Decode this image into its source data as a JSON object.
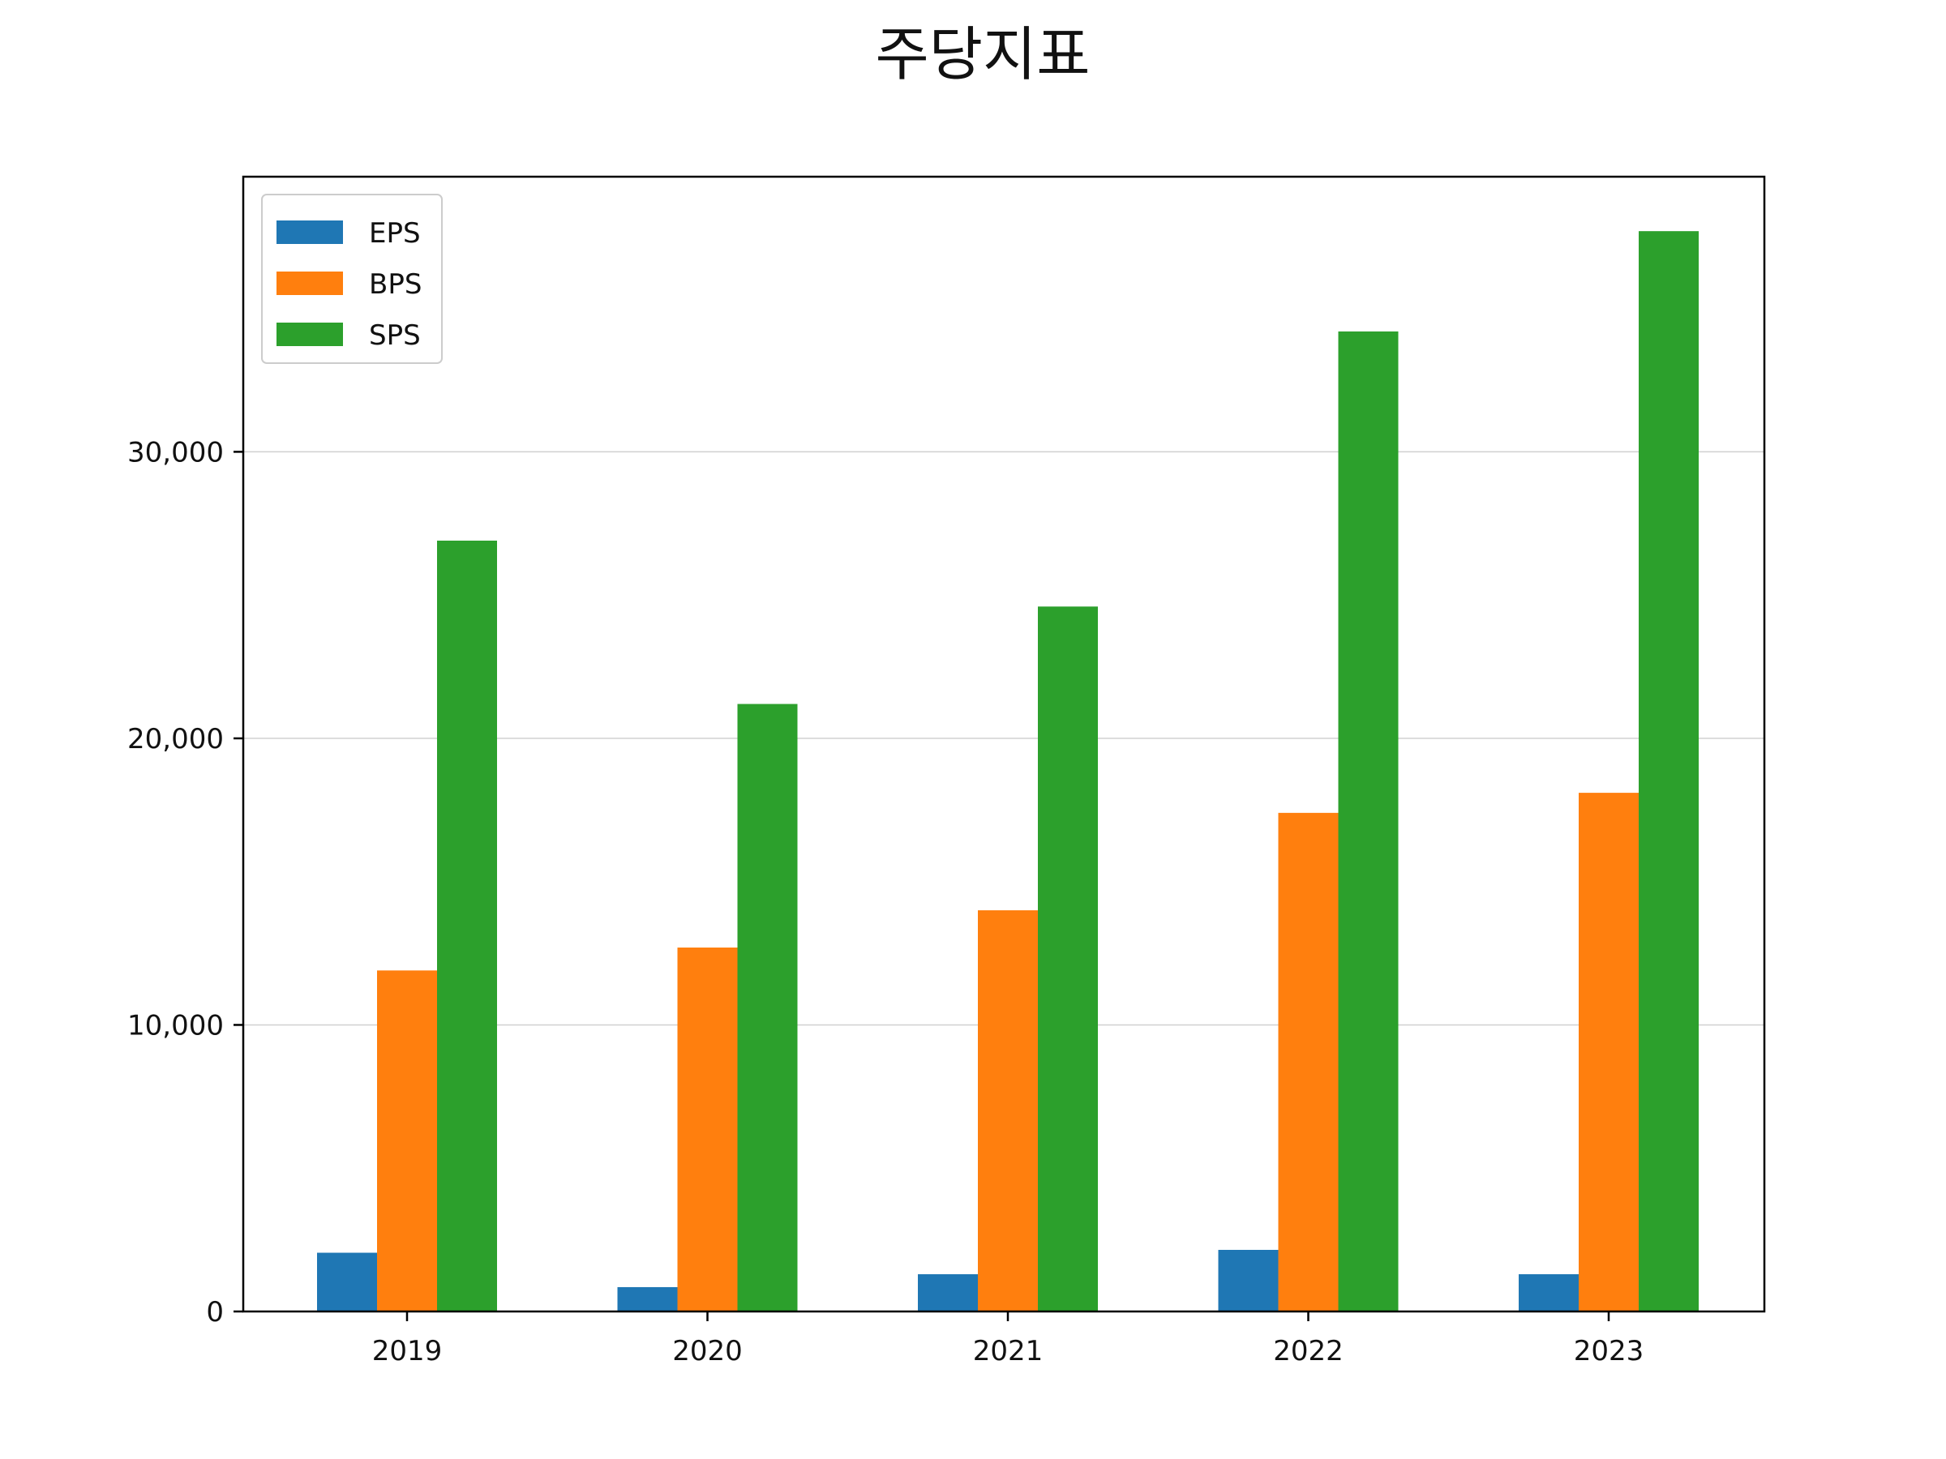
{
  "chart_data": {
    "type": "bar",
    "title": "주당지표",
    "xlabel": "",
    "ylabel": "",
    "categories": [
      "2019",
      "2020",
      "2021",
      "2022",
      "2023"
    ],
    "series": [
      {
        "name": "EPS",
        "color": "#1f77b4",
        "values": [
          2050,
          850,
          1300,
          2150,
          1300
        ]
      },
      {
        "name": "BPS",
        "color": "#ff7f0e",
        "values": [
          11900,
          12700,
          14000,
          17400,
          18100
        ]
      },
      {
        "name": "SPS",
        "color": "#2ca02c",
        "values": [
          26900,
          21200,
          24600,
          34200,
          37700
        ]
      }
    ],
    "ylim": [
      0,
      39600
    ],
    "yticks": [
      0,
      10000,
      20000,
      30000
    ],
    "ytick_labels": [
      "0",
      "10,000",
      "20,000",
      "30,000"
    ],
    "grid": "y-major",
    "legend_position": "top-left"
  }
}
